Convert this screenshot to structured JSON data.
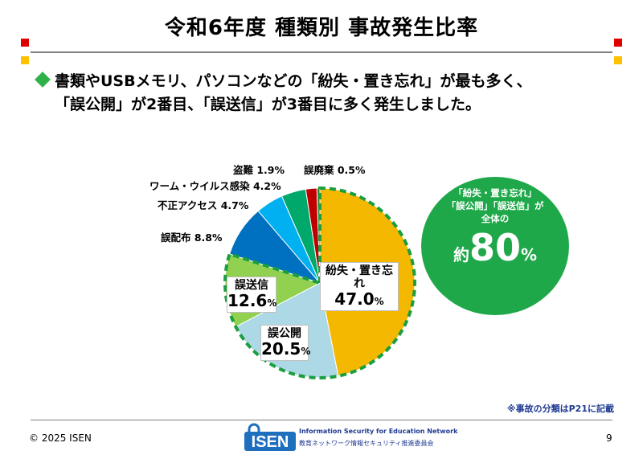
{
  "title": "令和6年度 種類別 事故発生比率",
  "bullet": {
    "line1": "書類やUSBメモリ、パソコンなどの「紛失・置き忘れ」が最も多く、",
    "line2": "「誤公開」が2番目、「誤送信」が3番目に多く発生しました。"
  },
  "labels": {
    "losing_name": "紛失・置き忘れ",
    "losing_pct": "47.0",
    "public_name": "誤公開",
    "public_pct": "20.5",
    "send_name": "誤送信",
    "send_pct": "12.6",
    "pct_sign": "%",
    "misdist": "誤配布 8.8%",
    "unauth": "不正アクセス 4.7%",
    "worm": "ワーム・ウイルス感染 4.2%",
    "theft": "盗難 1.9%",
    "disposal": "誤廃棄 0.5%"
  },
  "callout": {
    "line1": "「紛失・置き忘れ」",
    "line2": "「誤公開」「誤送信」が",
    "line3": "全体の",
    "prefix": "約",
    "value": "80",
    "suffix": "%"
  },
  "note": "※事故の分類はP21に記載",
  "footer": {
    "copyright": "© 2025 ISEN",
    "page": "9",
    "logo_text": "ISEN",
    "logo_name": "Information Security for Education Network",
    "logo_sub": "教育ネットワーク情報セキュリティ推進委員会"
  },
  "chart_data": {
    "type": "pie",
    "start": "12 o'clock, clockwise",
    "slices": [
      {
        "label": "紛失・置き忘れ",
        "value": 47.0,
        "color": "#f5b800"
      },
      {
        "label": "誤公開",
        "value": 20.5,
        "color": "#add8e6"
      },
      {
        "label": "誤送信",
        "value": 12.6,
        "color": "#92d050"
      },
      {
        "label": "誤配布",
        "value": 8.8,
        "color": "#0070c0"
      },
      {
        "label": "不正アクセス",
        "value": 4.7,
        "color": "#00b0f0"
      },
      {
        "label": "ワーム・ウイルス感染",
        "value": 4.2,
        "color": "#00a86b"
      },
      {
        "label": "盗難",
        "value": 1.9,
        "color": "#c00000"
      },
      {
        "label": "誤廃棄",
        "value": 0.5,
        "color": "#2e7d32"
      }
    ],
    "highlight_dash_color": "#1b9e3e",
    "callout_color": "#1fa84a"
  },
  "decor": {
    "red": "#e00000",
    "yellow": "#ffc000"
  }
}
